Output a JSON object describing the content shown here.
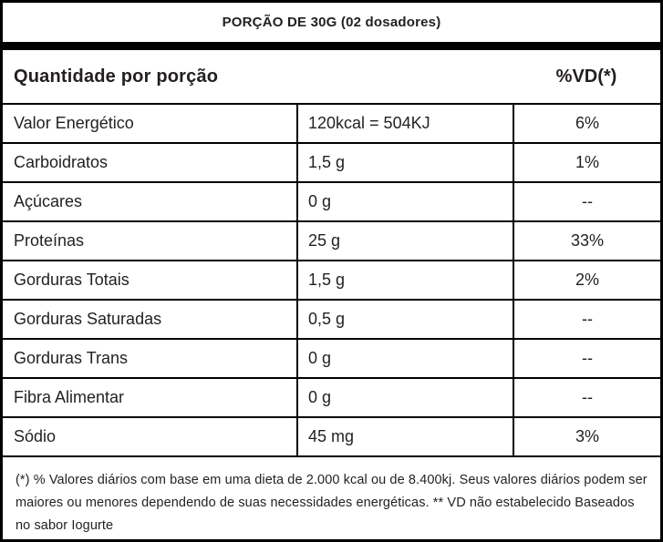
{
  "header": {
    "portion_title": "PORÇÃO DE 30G (02 dosadores)",
    "quantity_label": "Quantidade por porção",
    "dv_label": "%VD(*)"
  },
  "table": {
    "rows": [
      {
        "nutrient": "Valor Energético",
        "amount": "120kcal = 504KJ",
        "dv": "6%"
      },
      {
        "nutrient": "Carboidratos",
        "amount": "1,5 g",
        "dv": "1%"
      },
      {
        "nutrient": "Açúcares",
        "amount": "0 g",
        "dv": "--"
      },
      {
        "nutrient": "Proteínas",
        "amount": "25 g",
        "dv": "33%"
      },
      {
        "nutrient": "Gorduras Totais",
        "amount": "1,5 g",
        "dv": "2%"
      },
      {
        "nutrient": "Gorduras Saturadas",
        "amount": "0,5 g",
        "dv": "--"
      },
      {
        "nutrient": "Gorduras Trans",
        "amount": "0 g",
        "dv": "--"
      },
      {
        "nutrient": "Fibra Alimentar",
        "amount": "0 g",
        "dv": "--"
      },
      {
        "nutrient": "Sódio",
        "amount": "45 mg",
        "dv": "3%"
      }
    ]
  },
  "footnote": {
    "text": "(*) % Valores diários com base em uma dieta de 2.000 kcal ou de 8.400kj. Seus valores diários podem ser maiores ou menores dependendo de suas necessidades energéticas. ** VD não estabelecido Baseados no sabor Iogurte"
  },
  "colors": {
    "text": "#231f20",
    "border": "#000000",
    "background": "#ffffff"
  }
}
